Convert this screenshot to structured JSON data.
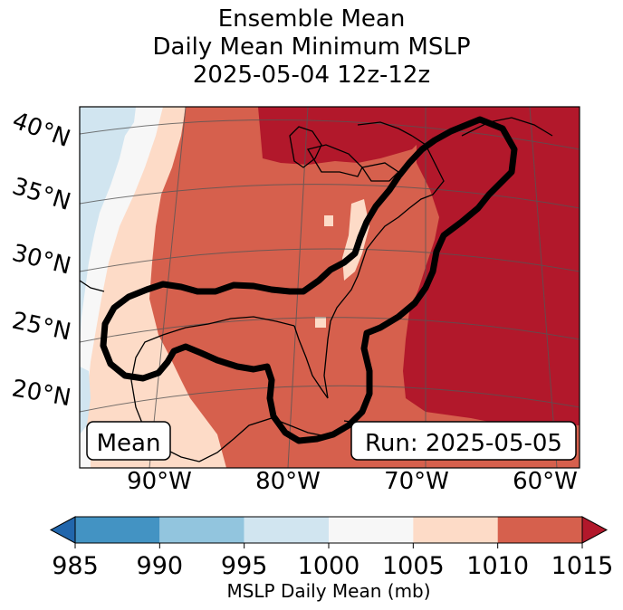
{
  "title": {
    "line1": "Ensemble Mean",
    "line2": "Daily Mean Minimum MSLP",
    "line3": "2025-05-04 12z-12z"
  },
  "map": {
    "lat_labels": [
      "40°N",
      "35°N",
      "30°N",
      "25°N",
      "20°N"
    ],
    "lon_labels": [
      "90°W",
      "80°W",
      "70°W",
      "60°W"
    ],
    "mean_box": "Mean",
    "run_box": "Run: 2025-05-05"
  },
  "colorbar": {
    "ticks": [
      "985",
      "990",
      "995",
      "1000",
      "1005",
      "1010",
      "1015"
    ],
    "colors": [
      "#2166ac",
      "#4393c3",
      "#92c5de",
      "#d1e5f0",
      "#f7f7f7",
      "#fddbc7",
      "#d6604d",
      "#b2182b"
    ],
    "label": "MSLP Daily Mean (mb)"
  },
  "colors": {
    "bg_light": "#f7f7f7",
    "pale_blue": "#d1e5f0",
    "pale_red": "#fddbc7",
    "mid_red": "#d6604d",
    "dark_red": "#b2182b",
    "contour": "#000000"
  }
}
